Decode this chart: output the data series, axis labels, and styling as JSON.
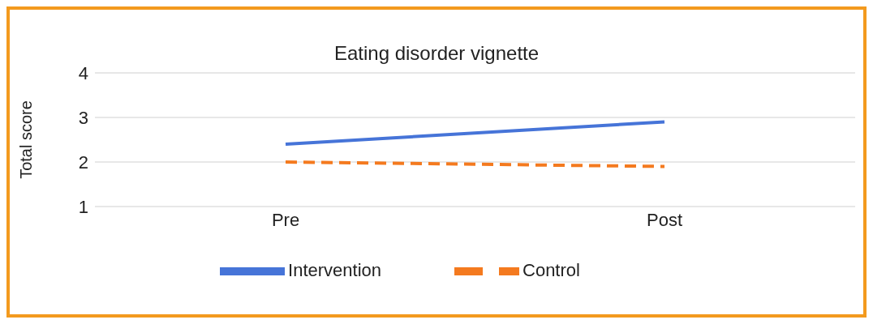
{
  "chart_data": {
    "type": "line",
    "title": "Eating disorder vignette",
    "ylabel": "Total score",
    "categories": [
      "Pre",
      "Post"
    ],
    "series": [
      {
        "name": "Intervention",
        "color": "#4674d8",
        "values": [
          2.4,
          2.9
        ],
        "line_style": "solid"
      },
      {
        "name": "Control",
        "color": "#f47a1f",
        "values": [
          2.0,
          1.9
        ],
        "line_style": "dashed"
      }
    ],
    "ylim": [
      1,
      4
    ],
    "yticks": [
      1,
      2,
      3,
      4
    ],
    "grid": "y",
    "legend": "bottom",
    "marker": "none"
  }
}
